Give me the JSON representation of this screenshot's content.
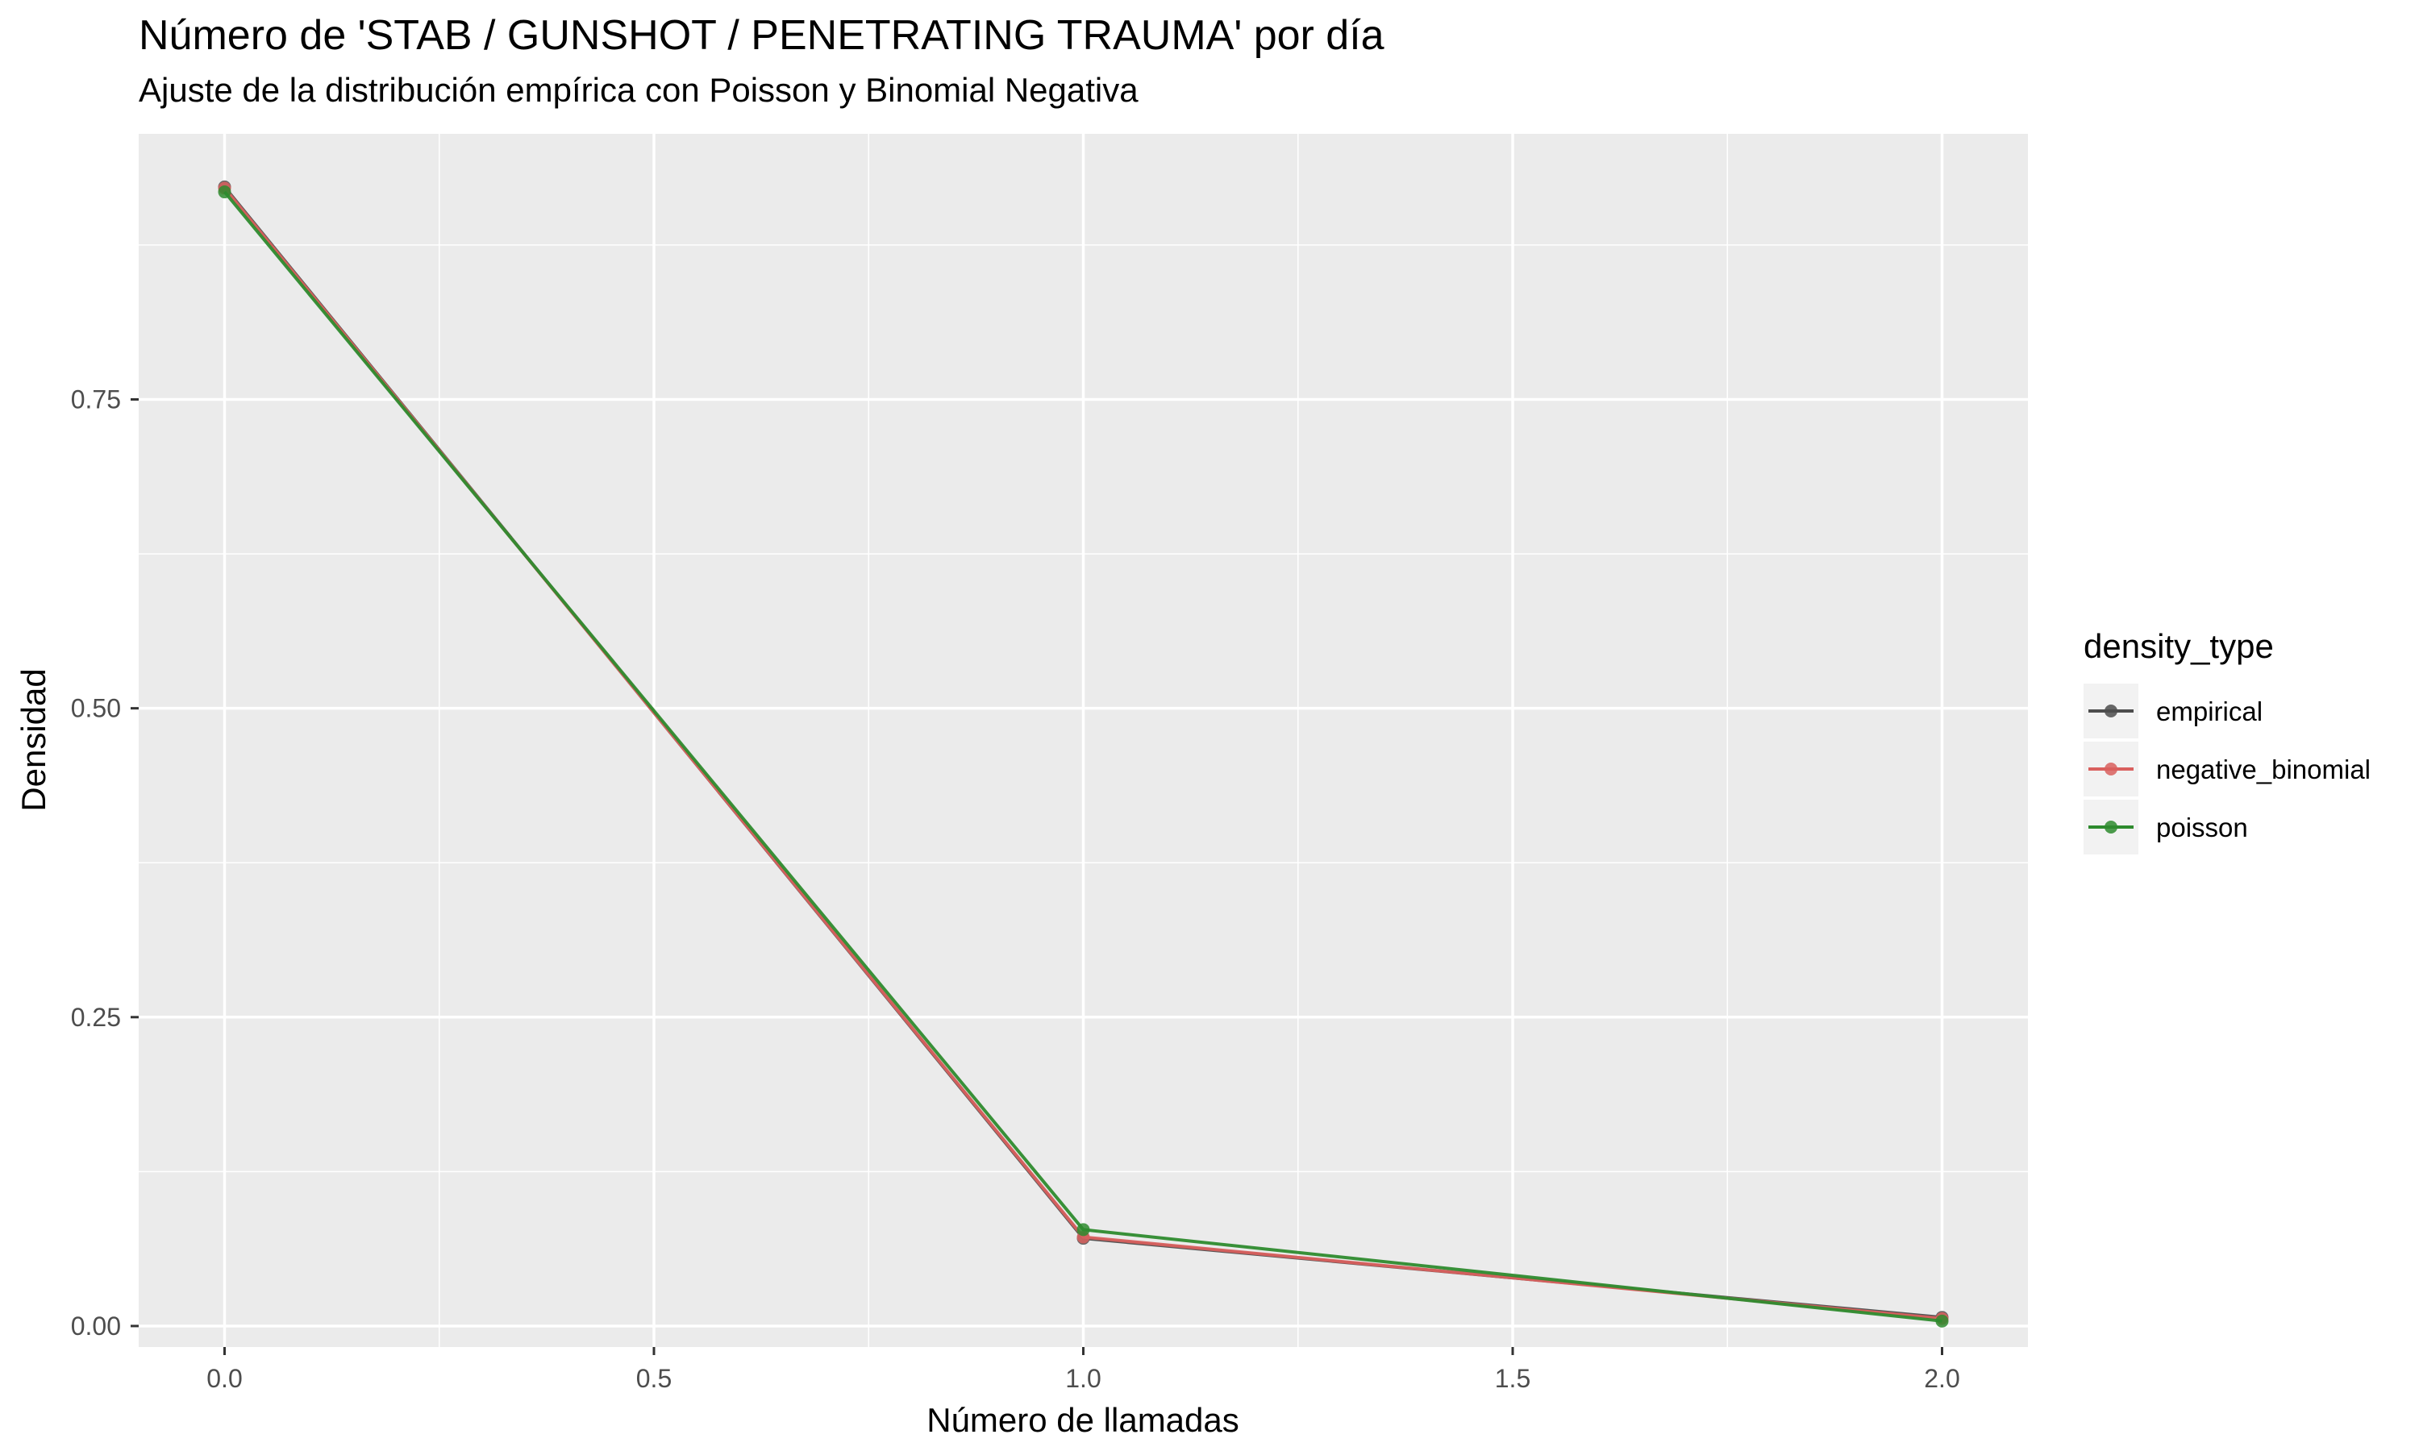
{
  "chart_data": {
    "type": "line",
    "title": "Número de 'STAB / GUNSHOT / PENETRATING TRAUMA' por día",
    "subtitle": "Ajuste de la distribución empírica con Poisson y Binomial Negativa",
    "xlabel": "Número de llamadas",
    "ylabel": "Densidad",
    "xlim": [
      -0.1,
      2.1
    ],
    "ylim": [
      -0.017,
      0.965
    ],
    "x_ticks": [
      0,
      0.5,
      1,
      1.5,
      2
    ],
    "x_tick_labels": [
      "0.0",
      "0.5",
      "1.0",
      "1.5",
      "2.0"
    ],
    "y_ticks": [
      0,
      0.25,
      0.5,
      0.75
    ],
    "y_tick_labels": [
      "0.00",
      "0.25",
      "0.50",
      "0.75"
    ],
    "grid": true,
    "legend_position": "right",
    "legend_title": "density_type",
    "x": [
      0,
      1,
      2
    ],
    "series": [
      {
        "name": "empirical",
        "color": "#4d4d4d",
        "values": [
          0.922,
          0.071,
          0.007
        ]
      },
      {
        "name": "negative_binomial",
        "color": "#d9605e",
        "values": [
          0.921,
          0.072,
          0.006
        ]
      },
      {
        "name": "poisson",
        "color": "#2e8b2e",
        "values": [
          0.918,
          0.078,
          0.004
        ]
      }
    ]
  }
}
